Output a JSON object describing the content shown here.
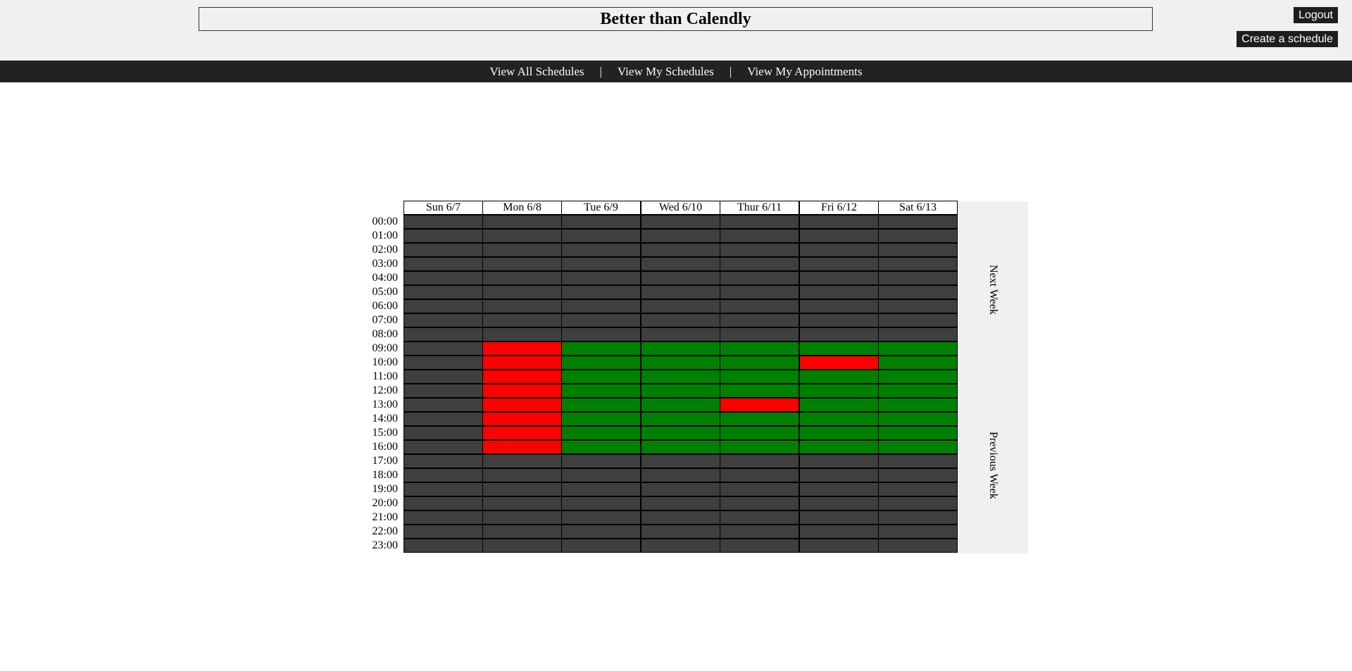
{
  "header": {
    "title": "Better than Calendly",
    "logout_label": "Logout",
    "create_label": "Create a schedule"
  },
  "nav": {
    "items": [
      "View All Schedules",
      "View My Schedules",
      "View My Appointments"
    ],
    "separator": "|"
  },
  "calendar": {
    "days": [
      "Sun 6/7",
      "Mon 6/8",
      "Tue 6/9",
      "Wed 6/10",
      "Thur 6/11",
      "Fri 6/12",
      "Sat 6/13"
    ],
    "hours": [
      "00:00",
      "01:00",
      "02:00",
      "03:00",
      "04:00",
      "05:00",
      "06:00",
      "07:00",
      "08:00",
      "09:00",
      "10:00",
      "11:00",
      "12:00",
      "13:00",
      "14:00",
      "15:00",
      "16:00",
      "17:00",
      "18:00",
      "19:00",
      "20:00",
      "21:00",
      "22:00",
      "23:00"
    ],
    "slot_status_legend": {
      "u": "unavailable",
      "a": "available",
      "b": "booked"
    },
    "grid": [
      "uuuuuuu",
      "uuuuuuu",
      "uuuuuuu",
      "uuuuuuu",
      "uuuuuuu",
      "uuuuuuu",
      "uuuuuuu",
      "uuuuuuu",
      "uuuuuuu",
      "ubaaaaa",
      "ubaaaba",
      "ubaaaaa",
      "ubaaaaa",
      "ubaabaa",
      "ubaaaaa",
      "ubaaaaa",
      "ubaaaaa",
      "uuuuuuu",
      "uuuuuuu",
      "uuuuuuu",
      "uuuuuuu",
      "uuuuuuu",
      "uuuuuuu",
      "uuuuuuu"
    ],
    "next_week_label": "Next Week",
    "prev_week_label": "Previous Week"
  },
  "colors": {
    "unavailable": "#3f3f3f",
    "available": "#008000",
    "booked": "#ff0000",
    "navbar": "#222222",
    "header_bg": "#f0f0f0"
  }
}
